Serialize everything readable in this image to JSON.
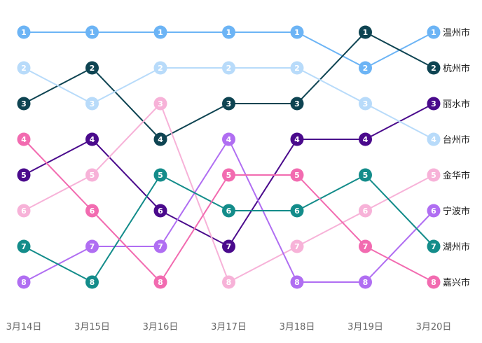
{
  "chart_data": {
    "type": "line",
    "subtype": "bump",
    "x": [
      "3月14日",
      "3月15日",
      "3月16日",
      "3月17日",
      "3月18日",
      "3月19日",
      "3月20日"
    ],
    "y_inverted": true,
    "ylim": [
      1,
      8
    ],
    "grid": false,
    "legend": "right-end labels",
    "series": [
      {
        "name": "温州市",
        "color": "#6cb4f5",
        "values": [
          1,
          1,
          1,
          1,
          1,
          2,
          1
        ]
      },
      {
        "name": "杭州市",
        "color": "#0e4452",
        "values": [
          3,
          2,
          4,
          3,
          3,
          1,
          2
        ]
      },
      {
        "name": "丽水市",
        "color": "#4a0a8c",
        "values": [
          5,
          4,
          6,
          7,
          4,
          4,
          3
        ]
      },
      {
        "name": "台州市",
        "color": "#b8dbfa",
        "values": [
          2,
          3,
          2,
          2,
          2,
          3,
          4
        ]
      },
      {
        "name": "金华市",
        "color": "#f7b2d8",
        "values": [
          6,
          5,
          3,
          8,
          7,
          6,
          5
        ]
      },
      {
        "name": "宁波市",
        "color": "#b06ef2",
        "values": [
          8,
          7,
          7,
          4,
          8,
          8,
          6
        ]
      },
      {
        "name": "湖州市",
        "color": "#138c8a",
        "values": [
          7,
          8,
          5,
          6,
          6,
          5,
          7
        ]
      },
      {
        "name": "嘉兴市",
        "color": "#f26bb0",
        "values": [
          4,
          6,
          8,
          5,
          5,
          7,
          8
        ]
      }
    ]
  }
}
